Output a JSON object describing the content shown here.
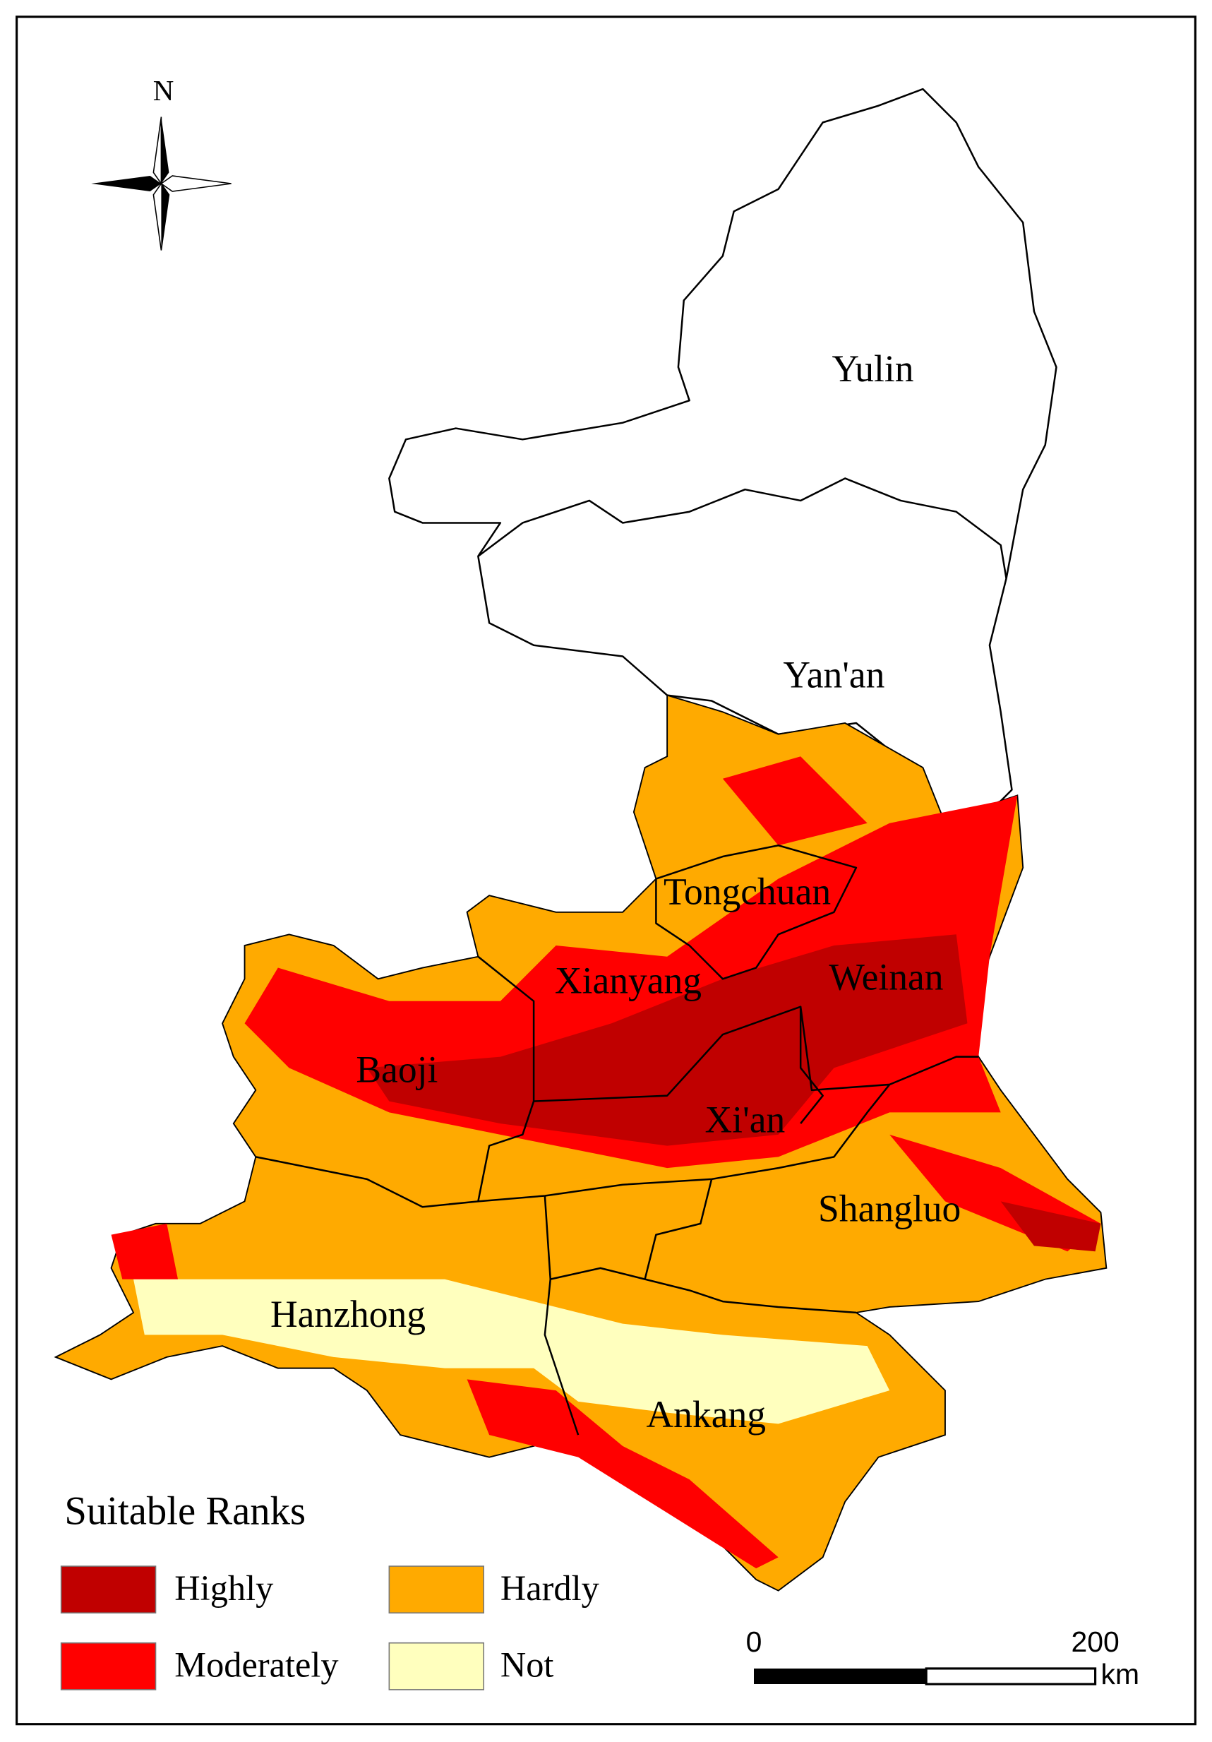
{
  "map": {
    "north": "N",
    "regions": [
      {
        "label": "Yulin"
      },
      {
        "label": "Yan'an"
      },
      {
        "label": "Tongchuan"
      },
      {
        "label": "Xianyang"
      },
      {
        "label": "Weinan"
      },
      {
        "label": "Baoji"
      },
      {
        "label": "Xi'an"
      },
      {
        "label": "Shangluo"
      },
      {
        "label": "Hanzhong"
      },
      {
        "label": "Ankang"
      }
    ],
    "legend": {
      "title": "Suitable Ranks",
      "items": [
        {
          "label": "Highly",
          "color": "#c00000"
        },
        {
          "label": "Moderately",
          "color": "#ff0000"
        },
        {
          "label": "Hardly",
          "color": "#ffaa00"
        },
        {
          "label": "Not",
          "color": "#ffffbe"
        }
      ]
    },
    "scale_bar": {
      "labels": [
        "0",
        "200"
      ],
      "unit": "km"
    }
  }
}
